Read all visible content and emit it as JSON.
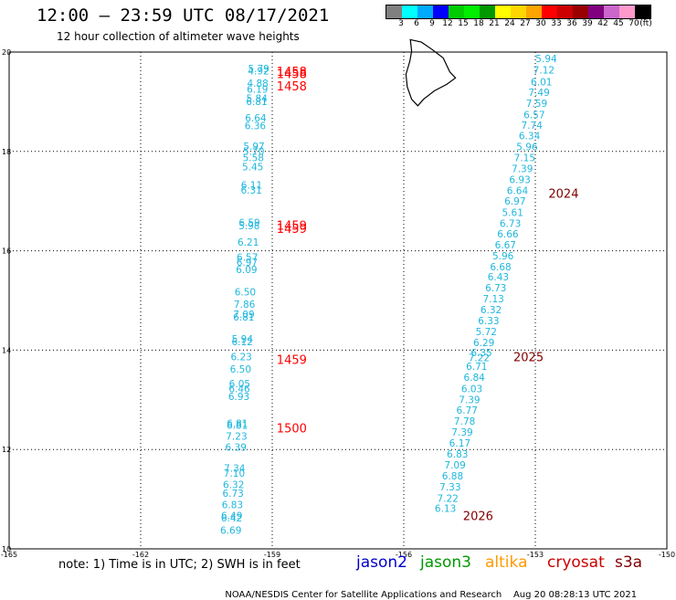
{
  "header": {
    "title": "12:00 – 23:59 UTC 08/17/2021",
    "subtitle": "12 hour collection of altimeter wave heights"
  },
  "legend": {
    "colors": [
      "#808080",
      "#00ffff",
      "#00aaff",
      "#0000ff",
      "#00cc00",
      "#00ee00",
      "#009900",
      "#ffff00",
      "#ffd700",
      "#ffa500",
      "#ff0000",
      "#cc0000",
      "#990000",
      "#800080",
      "#cc66cc",
      "#ff99cc",
      "#000000"
    ],
    "labels": [
      "3",
      "6",
      "9",
      "12",
      "15",
      "18",
      "21",
      "24",
      "27",
      "30",
      "33",
      "36",
      "39",
      "42",
      "45",
      "70",
      "(ft)"
    ]
  },
  "axes": {
    "x_ticks": [
      "-165",
      "-162",
      "-159",
      "-156",
      "-153",
      "-150"
    ],
    "y_ticks": [
      "20",
      "18",
      "16",
      "14",
      "12",
      "10"
    ],
    "x_range": [
      -165,
      -150
    ],
    "y_range": [
      10,
      20
    ]
  },
  "tracks": {
    "west": {
      "lon_start": -159.35,
      "lat_start": 19.0,
      "lon_end": -159.95,
      "lat_end": 10.2,
      "values": [
        "5.79",
        "4.92",
        "4.88",
        "6.19",
        "5.84",
        "6.81",
        "6.64",
        "6.36",
        "5.97",
        "5.70",
        "5.58",
        "5.45",
        "6.11",
        "6.31",
        "6.59",
        "5.98",
        "6.21",
        "6.57",
        "6.97",
        "6.09",
        "6.50",
        "7.86",
        "7.09",
        "6.81",
        "5.94",
        "6.12",
        "6.23",
        "6.50",
        "6.05",
        "6.46",
        "6.93",
        "6.81",
        "6.81",
        "7.23",
        "6.39",
        "7.34",
        "7.10",
        "6.32",
        "6.73",
        "6.83",
        "6.49",
        "6.42",
        "6.69"
      ],
      "lats": [
        19.6,
        19.55,
        19.3,
        19.18,
        19.0,
        18.93,
        18.6,
        18.45,
        18.03,
        17.93,
        17.8,
        17.62,
        17.25,
        17.15,
        16.5,
        16.43,
        16.1,
        15.8,
        15.7,
        15.55,
        15.1,
        14.85,
        14.65,
        14.6,
        14.15,
        14.1,
        13.8,
        13.55,
        13.25,
        13.15,
        13.0,
        12.45,
        12.42,
        12.2,
        11.98,
        11.55,
        11.45,
        11.22,
        11.05,
        10.82,
        10.6,
        10.55,
        10.3
      ],
      "times": [
        {
          "label": "1458",
          "lat": 19.6,
          "color": "#ff0000"
        },
        {
          "label": "1458",
          "lat": 19.55,
          "color": "#ff0000"
        },
        {
          "label": "1458",
          "lat": 19.3,
          "color": "#ff0000"
        },
        {
          "label": "1459",
          "lat": 16.5,
          "color": "#ff0000"
        },
        {
          "label": "1459",
          "lat": 16.43,
          "color": "#ff0000"
        },
        {
          "label": "1459",
          "lat": 13.8,
          "color": "#ff0000"
        },
        {
          "label": "1500",
          "lat": 12.42,
          "color": "#ff0000"
        }
      ]
    },
    "east": {
      "values": [
        "5.94",
        "7.12",
        "6.01",
        "7.49",
        "7.59",
        "6.57",
        "7.74",
        "6.34",
        "5.96",
        "7.15",
        "7.39",
        "6.93",
        "6.64",
        "6.97",
        "5.61",
        "6.73",
        "6.66",
        "6.67",
        "5.96",
        "6.68",
        "6.43",
        "6.73",
        "7.13",
        "6.32",
        "6.33",
        "5.72",
        "6.29",
        "6.35",
        "7.22",
        "6.71",
        "6.84",
        "6.03",
        "7.39",
        "6.77",
        "7.78",
        "7.39",
        "6.17",
        "6.83",
        "7.09",
        "6.88",
        "7.33",
        "7.22",
        "6.13"
      ],
      "lats": [
        19.8,
        19.57,
        19.33,
        19.12,
        18.9,
        18.67,
        18.46,
        18.24,
        18.02,
        17.8,
        17.58,
        17.36,
        17.14,
        16.93,
        16.7,
        16.48,
        16.27,
        16.05,
        15.83,
        15.61,
        15.4,
        15.18,
        14.96,
        14.74,
        14.52,
        14.3,
        14.08,
        13.88,
        13.78,
        13.6,
        13.38,
        13.15,
        12.93,
        12.72,
        12.5,
        12.28,
        12.06,
        11.84,
        11.62,
        11.4,
        11.18,
        10.95,
        10.74
      ],
      "lon_start": -152.75,
      "lon_end": -155.05,
      "times": [
        {
          "label": "2024",
          "lat": 17.14,
          "color": "#800000"
        },
        {
          "label": "2025",
          "lat": 13.85,
          "color": "#800000"
        },
        {
          "label": "2026",
          "lat": 10.65,
          "color": "#800000"
        }
      ]
    }
  },
  "footer": {
    "note": "note: 1) Time is in UTC; 2) SWH is in feet",
    "satellites": [
      {
        "name": "jason2",
        "color": "#0000cc"
      },
      {
        "name": "jason3",
        "color": "#009900"
      },
      {
        "name": "altika",
        "color": "#ff9900"
      },
      {
        "name": "cryosat",
        "color": "#cc0000"
      },
      {
        "name": "s3a",
        "color": "#800000"
      }
    ],
    "credit": "NOAA/NESDIS Center for Satellite Applications and Research",
    "generated": "Aug 20 08:28:13 UTC 2021"
  },
  "colors": {
    "track_value": "#1fb7dd",
    "grid": "#000000"
  }
}
